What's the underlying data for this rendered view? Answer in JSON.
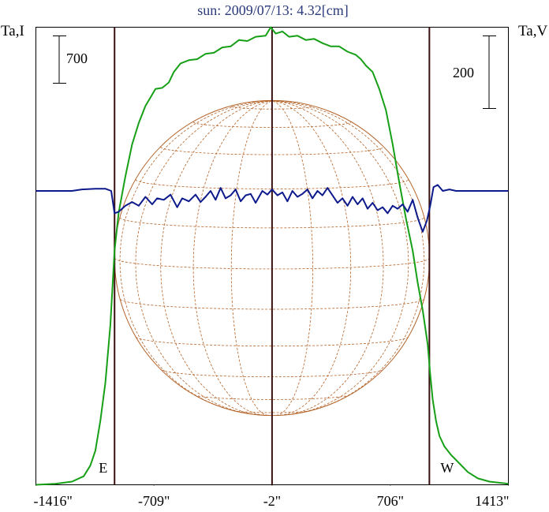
{
  "chart_data": {
    "type": "line",
    "title": "sun: 2009/07/13: 4.32[cm]",
    "left_axis_label": "Ta,I",
    "right_axis_label": "Ta,V",
    "left_scale_bar": "700",
    "right_scale_bar": "200",
    "x_tick_labels": [
      "-1416\"",
      "-709\"",
      "-2\"",
      "706\"",
      "1413\""
    ],
    "x_ticks": [
      -1416,
      -709,
      -2,
      706,
      1413
    ],
    "xlim": [
      -1416,
      1413
    ],
    "limb_markers": [
      {
        "label": "E",
        "x": -945
      },
      {
        "label": "W",
        "x": 940
      }
    ],
    "center_marker_x": -2,
    "solar_disk": {
      "center_x": -2,
      "radius_arcsec": 943
    },
    "series": [
      {
        "name": "Ta,I",
        "color": "#17a017",
        "axis": "left",
        "ylim": [
          -100,
          2050
        ],
        "points": [
          [
            -1416,
            -100
          ],
          [
            -1300,
            -95
          ],
          [
            -1200,
            -85
          ],
          [
            -1130,
            -60
          ],
          [
            -1090,
            -10
          ],
          [
            -1060,
            60
          ],
          [
            -1030,
            200
          ],
          [
            -1000,
            380
          ],
          [
            -970,
            650
          ],
          [
            -945,
            1000
          ],
          [
            -920,
            1180
          ],
          [
            -880,
            1350
          ],
          [
            -840,
            1500
          ],
          [
            -800,
            1600
          ],
          [
            -760,
            1680
          ],
          [
            -730,
            1720
          ],
          [
            -700,
            1760
          ],
          [
            -660,
            1765
          ],
          [
            -620,
            1790
          ],
          [
            -590,
            1840
          ],
          [
            -550,
            1880
          ],
          [
            -500,
            1895
          ],
          [
            -450,
            1900
          ],
          [
            -400,
            1925
          ],
          [
            -350,
            1930
          ],
          [
            -300,
            1955
          ],
          [
            -250,
            1960
          ],
          [
            -200,
            1990
          ],
          [
            -150,
            1985
          ],
          [
            -100,
            2005
          ],
          [
            -40,
            2010
          ],
          [
            -10,
            2050
          ],
          [
            20,
            2020
          ],
          [
            60,
            2030
          ],
          [
            100,
            2005
          ],
          [
            150,
            2010
          ],
          [
            200,
            1990
          ],
          [
            250,
            1995
          ],
          [
            300,
            1975
          ],
          [
            350,
            1960
          ],
          [
            400,
            1960
          ],
          [
            450,
            1935
          ],
          [
            500,
            1920
          ],
          [
            530,
            1900
          ],
          [
            560,
            1870
          ],
          [
            600,
            1840
          ],
          [
            640,
            1760
          ],
          [
            680,
            1660
          ],
          [
            720,
            1500
          ],
          [
            760,
            1320
          ],
          [
            800,
            1150
          ],
          [
            840,
            1000
          ],
          [
            870,
            850
          ],
          [
            900,
            720
          ],
          [
            930,
            560
          ],
          [
            945,
            420
          ],
          [
            960,
            300
          ],
          [
            980,
            200
          ],
          [
            1000,
            130
          ],
          [
            1030,
            80
          ],
          [
            1070,
            40
          ],
          [
            1120,
            0
          ],
          [
            1170,
            -40
          ],
          [
            1230,
            -70
          ],
          [
            1300,
            -85
          ],
          [
            1413,
            -95
          ]
        ]
      },
      {
        "name": "Ta,V",
        "color": "#0d1a8c",
        "axis": "right",
        "ylim": [
          -395,
          220
        ],
        "points": [
          [
            -1416,
            0
          ],
          [
            -1200,
            0
          ],
          [
            -1140,
            2
          ],
          [
            -1060,
            3
          ],
          [
            -1000,
            3
          ],
          [
            -965,
            0
          ],
          [
            -945,
            -30
          ],
          [
            -920,
            -28
          ],
          [
            -880,
            -20
          ],
          [
            -840,
            -15
          ],
          [
            -800,
            -20
          ],
          [
            -760,
            -8
          ],
          [
            -720,
            -18
          ],
          [
            -690,
            -10
          ],
          [
            -650,
            -12
          ],
          [
            -610,
            -5
          ],
          [
            -570,
            -22
          ],
          [
            -540,
            -10
          ],
          [
            -500,
            -14
          ],
          [
            -460,
            -5
          ],
          [
            -430,
            -15
          ],
          [
            -400,
            -8
          ],
          [
            -370,
            0
          ],
          [
            -340,
            -12
          ],
          [
            -310,
            4
          ],
          [
            -280,
            -10
          ],
          [
            -250,
            -6
          ],
          [
            -220,
            2
          ],
          [
            -190,
            -14
          ],
          [
            -160,
            -6
          ],
          [
            -130,
            -4
          ],
          [
            -100,
            -16
          ],
          [
            -60,
            0
          ],
          [
            -30,
            -5
          ],
          [
            -2,
            2
          ],
          [
            30,
            -6
          ],
          [
            60,
            -2
          ],
          [
            90,
            -14
          ],
          [
            120,
            0
          ],
          [
            150,
            -8
          ],
          [
            180,
            -4
          ],
          [
            210,
            2
          ],
          [
            240,
            -10
          ],
          [
            270,
            0
          ],
          [
            300,
            -6
          ],
          [
            330,
            4
          ],
          [
            360,
            -6
          ],
          [
            390,
            -16
          ],
          [
            420,
            -10
          ],
          [
            450,
            -20
          ],
          [
            480,
            -8
          ],
          [
            510,
            -18
          ],
          [
            540,
            -10
          ],
          [
            570,
            -24
          ],
          [
            600,
            -16
          ],
          [
            630,
            -26
          ],
          [
            660,
            -22
          ],
          [
            690,
            -30
          ],
          [
            720,
            -20
          ],
          [
            750,
            -24
          ],
          [
            780,
            -18
          ],
          [
            810,
            -28
          ],
          [
            840,
            -12
          ],
          [
            870,
            -36
          ],
          [
            900,
            -55
          ],
          [
            925,
            -40
          ],
          [
            945,
            -20
          ],
          [
            965,
            5
          ],
          [
            990,
            8
          ],
          [
            1020,
            0
          ],
          [
            1060,
            2
          ],
          [
            1100,
            0
          ],
          [
            1200,
            0
          ],
          [
            1413,
            0
          ]
        ]
      }
    ]
  }
}
